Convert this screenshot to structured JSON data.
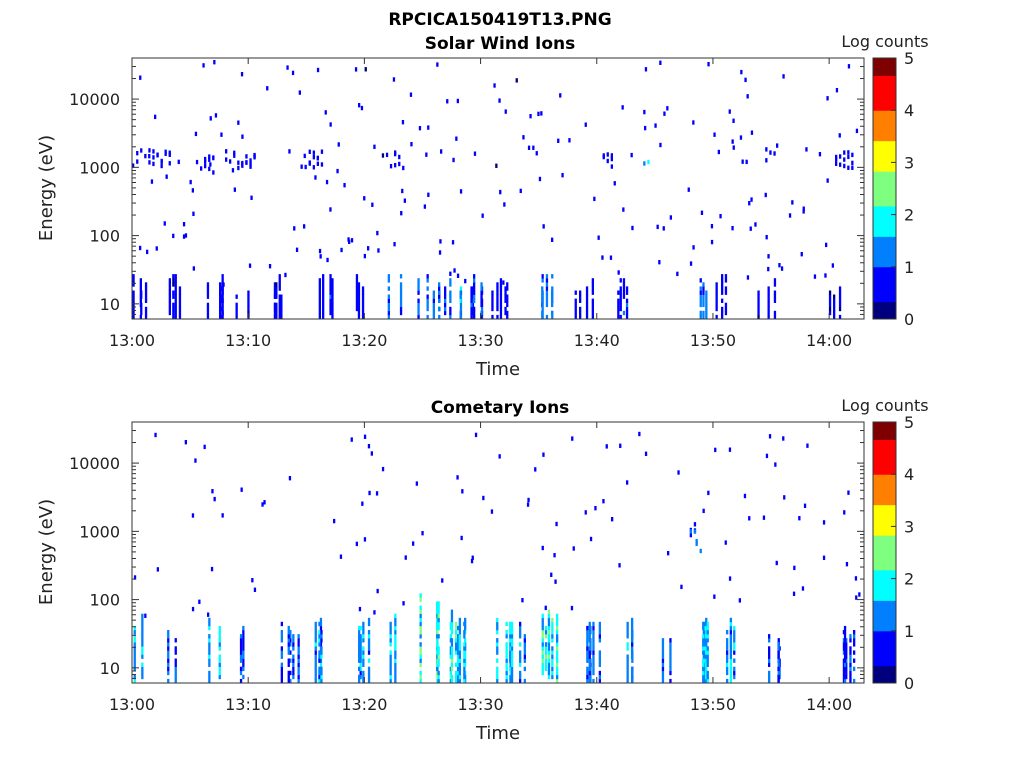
{
  "figure": {
    "filename_title": "RPCICA150419T13.PNG"
  },
  "colorbar": {
    "label": "Log counts",
    "ticks": [
      "0",
      "1",
      "2",
      "3",
      "4",
      "5"
    ],
    "colormap": [
      "#00007f",
      "#0000ff",
      "#007fff",
      "#00ffff",
      "#7fff7f",
      "#ffff00",
      "#ff7f00",
      "#ff0000",
      "#7f0000"
    ]
  },
  "chart_data": [
    {
      "type": "heatmap",
      "title": "Solar Wind Ions",
      "xlabel": "Time",
      "ylabel": "Energy (eV)",
      "x_tick_labels": [
        "13:00",
        "13:10",
        "13:20",
        "13:30",
        "13:40",
        "13:50",
        "14:00"
      ],
      "x_tick_minutes": [
        0,
        10,
        20,
        30,
        40,
        50,
        60
      ],
      "xlim_minutes": [
        0,
        63
      ],
      "y_scale": "log",
      "y_tick_labels": [
        "10",
        "100",
        "1000",
        "10000"
      ],
      "y_tick_values": [
        10,
        100,
        1000,
        10000
      ],
      "ylim": [
        6,
        40000
      ],
      "clim": [
        0,
        5
      ],
      "low_energy_bursts": [
        {
          "t": 0.5,
          "emax": 28,
          "level": 0.6
        },
        {
          "t": 3.8,
          "emax": 28,
          "level": 0.5
        },
        {
          "t": 7.0,
          "emax": 28,
          "level": 0.6
        },
        {
          "t": 9.2,
          "emax": 25,
          "level": 0.5
        },
        {
          "t": 13.0,
          "emax": 28,
          "level": 0.5
        },
        {
          "t": 16.5,
          "emax": 28,
          "level": 0.8
        },
        {
          "t": 19.0,
          "emax": 28,
          "level": 0.6
        },
        {
          "t": 22.5,
          "emax": 28,
          "level": 1.1
        },
        {
          "t": 25.2,
          "emax": 28,
          "level": 1.2
        },
        {
          "t": 26.5,
          "emax": 28,
          "level": 1.0
        },
        {
          "t": 28.3,
          "emax": 28,
          "level": 1.4
        },
        {
          "t": 29.8,
          "emax": 28,
          "level": 0.9
        },
        {
          "t": 31.5,
          "emax": 28,
          "level": 0.7
        },
        {
          "t": 35.8,
          "emax": 28,
          "level": 1.3
        },
        {
          "t": 38.8,
          "emax": 28,
          "level": 0.6
        },
        {
          "t": 42.5,
          "emax": 28,
          "level": 0.8
        },
        {
          "t": 48.8,
          "emax": 28,
          "level": 1.2
        },
        {
          "t": 51.0,
          "emax": 28,
          "level": 0.6
        },
        {
          "t": 54.5,
          "emax": 25,
          "level": 0.5
        },
        {
          "t": 60.5,
          "emax": 20,
          "level": 0.4
        }
      ],
      "mid_energy_bands": [
        {
          "t0": 0.0,
          "t1": 3.5,
          "e": 1500,
          "level": 0.5
        },
        {
          "t0": 5.5,
          "t1": 7.0,
          "e": 1200,
          "level": 0.6
        },
        {
          "t0": 8.0,
          "t1": 10.5,
          "e": 1400,
          "level": 0.7
        },
        {
          "t0": 14.5,
          "t1": 16.5,
          "e": 1400,
          "level": 0.5
        },
        {
          "t0": 21.5,
          "t1": 23.5,
          "e": 1400,
          "level": 0.4
        },
        {
          "t0": 40.5,
          "t1": 41.5,
          "e": 1300,
          "level": 0.7
        },
        {
          "t0": 44.0,
          "t1": 44.6,
          "e": 1500,
          "level": 1.3
        },
        {
          "t0": 54.5,
          "t1": 55.2,
          "e": 1500,
          "level": 0.7
        },
        {
          "t0": 60.5,
          "t1": 62.0,
          "e": 1400,
          "level": 0.6
        }
      ],
      "scatter_density": 200,
      "scatter_emin": 20,
      "scatter_emax": 40000
    },
    {
      "type": "heatmap",
      "title": "Cometary Ions",
      "xlabel": "Time",
      "ylabel": "Energy (eV)",
      "x_tick_labels": [
        "13:00",
        "13:10",
        "13:20",
        "13:30",
        "13:40",
        "13:50",
        "14:00"
      ],
      "x_tick_minutes": [
        0,
        10,
        20,
        30,
        40,
        50,
        60
      ],
      "xlim_minutes": [
        0,
        63
      ],
      "y_scale": "log",
      "y_tick_labels": [
        "10",
        "100",
        "1000",
        "10000"
      ],
      "y_tick_values": [
        10,
        100,
        1000,
        10000
      ],
      "ylim": [
        6,
        40000
      ],
      "clim": [
        0,
        5
      ],
      "low_energy_bursts": [
        {
          "t": 0.5,
          "emax": 65,
          "level": 1.6
        },
        {
          "t": 3.8,
          "emax": 40,
          "level": 1.2
        },
        {
          "t": 7.0,
          "emax": 60,
          "level": 1.8
        },
        {
          "t": 9.2,
          "emax": 40,
          "level": 1.0
        },
        {
          "t": 13.5,
          "emax": 45,
          "level": 1.1
        },
        {
          "t": 16.5,
          "emax": 55,
          "level": 1.4
        },
        {
          "t": 19.5,
          "emax": 60,
          "level": 1.5
        },
        {
          "t": 22.5,
          "emax": 70,
          "level": 1.6
        },
        {
          "t": 25.5,
          "emax": 120,
          "level": 2.0
        },
        {
          "t": 27.5,
          "emax": 75,
          "level": 1.9
        },
        {
          "t": 28.5,
          "emax": 60,
          "level": 1.6
        },
        {
          "t": 32.0,
          "emax": 80,
          "level": 1.8
        },
        {
          "t": 33.5,
          "emax": 55,
          "level": 1.4
        },
        {
          "t": 36.0,
          "emax": 75,
          "level": 2.0
        },
        {
          "t": 39.5,
          "emax": 70,
          "level": 1.3
        },
        {
          "t": 42.5,
          "emax": 70,
          "level": 1.5
        },
        {
          "t": 45.5,
          "emax": 45,
          "level": 1.3
        },
        {
          "t": 48.8,
          "emax": 80,
          "level": 1.6
        },
        {
          "t": 51.8,
          "emax": 55,
          "level": 1.5
        },
        {
          "t": 55.0,
          "emax": 35,
          "level": 1.0
        },
        {
          "t": 61.5,
          "emax": 50,
          "level": 0.9
        }
      ],
      "mid_energy_bands": [
        {
          "t0": 48.5,
          "t1": 49.0,
          "e": 700,
          "level": 1.5
        },
        {
          "t0": 48.0,
          "t1": 48.5,
          "e": 1200,
          "level": 0.8
        }
      ],
      "scatter_density": 110,
      "scatter_emin": 60,
      "scatter_emax": 30000
    }
  ]
}
